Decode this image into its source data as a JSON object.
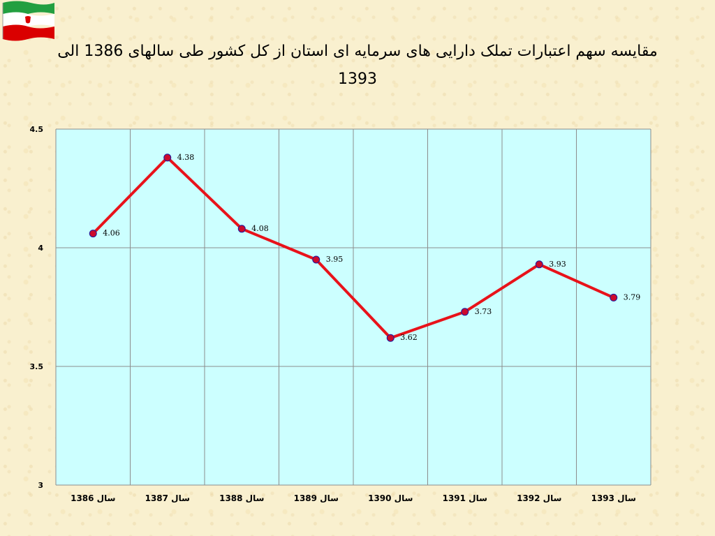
{
  "chart_data": {
    "type": "line",
    "title": "مقایسه سهم اعتبارات تملک دارایی های سرمایه ای استان از کل کشور طی سالهای 1386 الی 1393",
    "categories": [
      "سال 1386",
      "سال 1387",
      "سال 1388",
      "سال 1389",
      "سال 1390",
      "سال 1391",
      "سال 1392",
      "سال 1393"
    ],
    "series": [
      {
        "values": [
          4.06,
          4.38,
          4.08,
          3.95,
          3.62,
          3.73,
          3.93,
          3.79
        ]
      }
    ],
    "ylim": [
      3,
      4.5
    ],
    "yticks": [
      "3",
      "3.5",
      "4",
      "4.5"
    ],
    "grid": true,
    "xlabel": "",
    "ylabel": "",
    "line_color": "#e8121a",
    "marker_color": "#cc0a2c",
    "plot_background": "#ccffff",
    "gridline_color": "#8c8c8c"
  },
  "flag": {
    "icon": "iran-flag-icon",
    "colors": [
      "#239f40",
      "#ffffff",
      "#da0000"
    ]
  }
}
